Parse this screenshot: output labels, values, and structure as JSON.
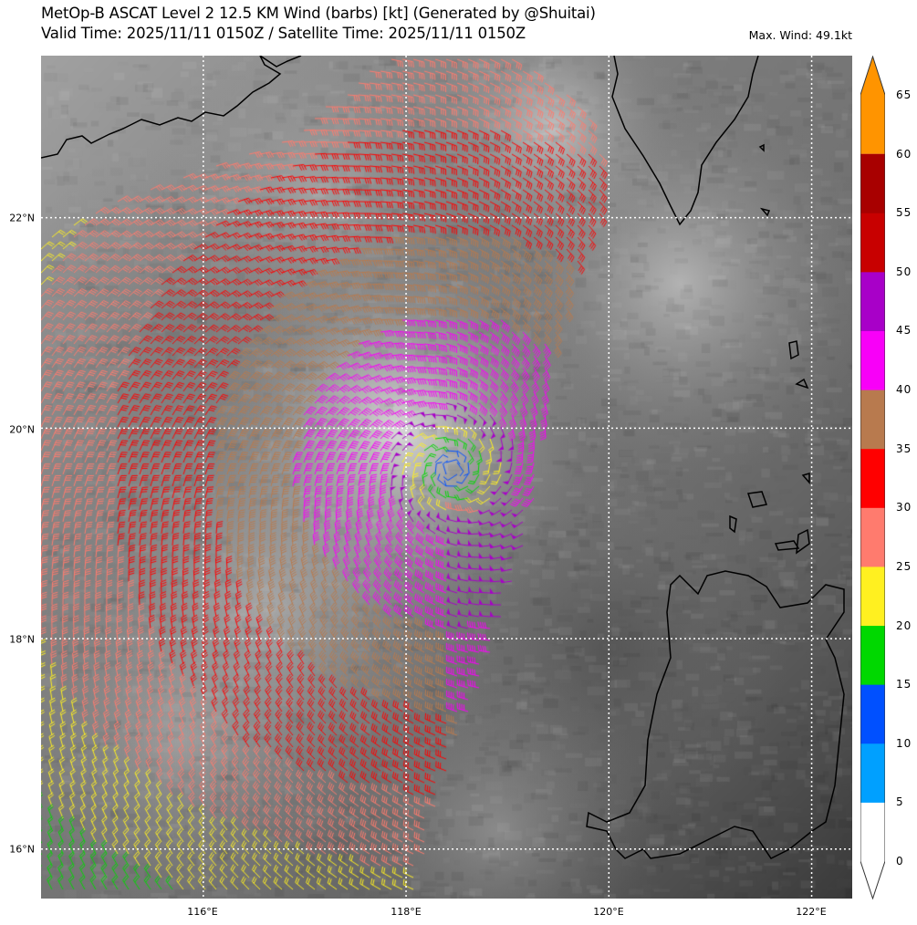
{
  "header": {
    "title": "MetOp-B ASCAT Level 2 12.5 KM Wind (barbs) [kt] (Generated by @Shuitai)",
    "subtitle": "Valid Time: 2025/11/11 0150Z / Satellite Time: 2025/11/11 0150Z",
    "max_wind": "Max. Wind: 49.1kt"
  },
  "map": {
    "extent_lon": [
      114.4,
      122.4
    ],
    "extent_lat": [
      15.53,
      23.54
    ],
    "gridlines": true,
    "background": "grayscale infrared satellite imagery",
    "lat_ticks": [
      {
        "value": 22,
        "label": "22°N"
      },
      {
        "value": 20,
        "label": "20°N"
      },
      {
        "value": 18,
        "label": "18°N"
      },
      {
        "value": 16,
        "label": "16°N"
      }
    ],
    "lon_ticks": [
      {
        "value": 116,
        "label": "116°E"
      },
      {
        "value": 118,
        "label": "118°E"
      },
      {
        "value": 120,
        "label": "120°E"
      },
      {
        "value": 122,
        "label": "122°E"
      }
    ],
    "storm_center": {
      "lon": 118.45,
      "lat": 19.6
    }
  },
  "colorbar": {
    "unit": "kt",
    "ticks": [
      "0",
      "5",
      "10",
      "15",
      "20",
      "25",
      "30",
      "35",
      "40",
      "45",
      "50",
      "55",
      "60",
      "65"
    ],
    "colors": [
      "#ffffff",
      "#00a0ff",
      "#0050ff",
      "#00d800",
      "#fff020",
      "#ff7b6e",
      "#ff0000",
      "#b87a4e",
      "#f800f8",
      "#a800c8",
      "#c80000",
      "#a80000",
      "#ff9400"
    ],
    "extend": "both"
  }
}
